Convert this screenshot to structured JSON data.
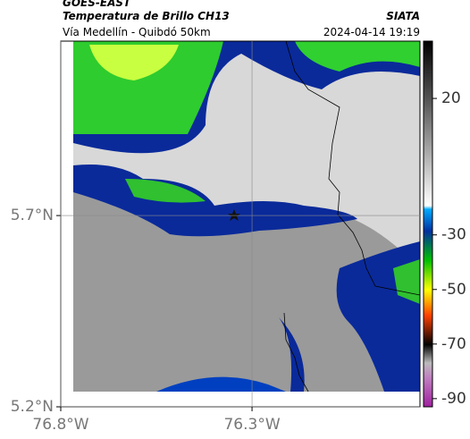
{
  "header": {
    "line1": "GOES-EAST",
    "line2": "Temperatura de Brillo CH13",
    "subtitle": "Vía Medellín - Quibdó 50km",
    "source": "SIATA",
    "datetime": "2024-04-14 19:19"
  },
  "map": {
    "lonlim": [
      -76.8,
      -75.861
    ],
    "latlim": [
      5.2,
      6.156
    ],
    "lonticks": [
      {
        "value": -76.8,
        "label": "76.8°W"
      },
      {
        "value": -76.3,
        "label": "76.3°W"
      }
    ],
    "latticks": [
      {
        "value": 5.2,
        "label": "5.2°N"
      },
      {
        "value": 5.7,
        "label": "5.7°N"
      }
    ],
    "grid": true,
    "colorbar": {
      "lim": [
        -93,
        41
      ],
      "ticks": [
        20,
        -30,
        -50,
        -70,
        -90
      ]
    }
  }
}
